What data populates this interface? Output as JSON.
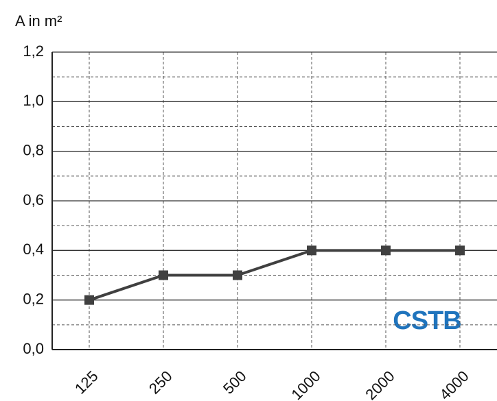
{
  "chart_data": {
    "type": "line",
    "y_label": "A in m²",
    "logo": "CSTB",
    "categories": [
      "125",
      "250",
      "500",
      "1000",
      "2000",
      "4000"
    ],
    "series": [
      {
        "color": "#404040",
        "values": [
          0.2,
          0.3,
          0.3,
          0.4,
          0.4,
          0.4
        ]
      }
    ],
    "ylim": [
      0,
      1.2
    ],
    "yticks": [
      {
        "value": 0,
        "label": "0,0"
      },
      {
        "value": 0.2,
        "label": "0,2"
      },
      {
        "value": 0.4,
        "label": "0,4"
      },
      {
        "value": 0.6,
        "label": "0,6"
      },
      {
        "value": 0.8,
        "label": "0,8"
      },
      {
        "value": 1.0,
        "label": "1,0"
      },
      {
        "value": 1.2,
        "label": "1,2"
      }
    ],
    "minor_yticks": [
      0.1,
      0.3,
      0.5,
      0.7,
      0.9,
      1.1
    ],
    "grid": true
  }
}
